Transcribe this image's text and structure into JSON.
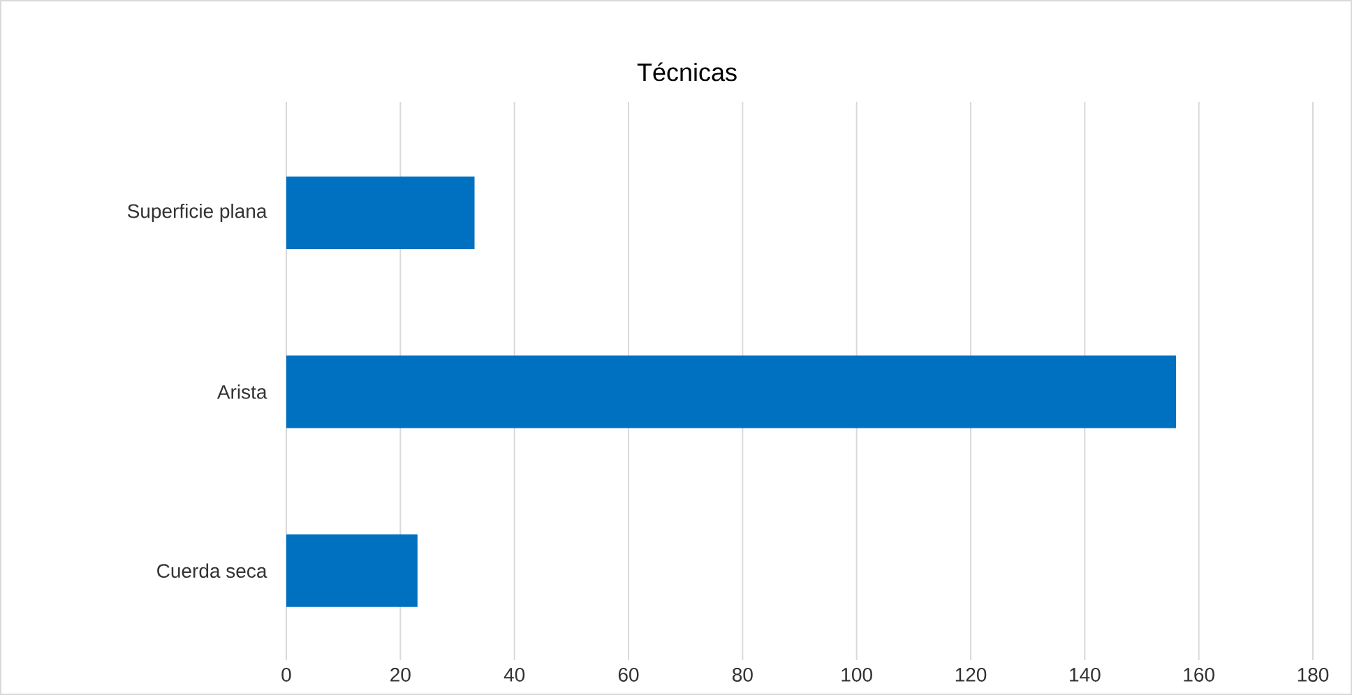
{
  "chart_data": {
    "type": "bar",
    "orientation": "horizontal",
    "title": "Técnicas",
    "categories": [
      "Superficie plana",
      "Arista",
      "Cuerda seca"
    ],
    "values": [
      33,
      156,
      23
    ],
    "color": "#0070c0",
    "xlim": [
      0,
      180
    ],
    "xticks": [
      0,
      20,
      40,
      60,
      80,
      100,
      120,
      140,
      160,
      180
    ],
    "grid": "x"
  }
}
